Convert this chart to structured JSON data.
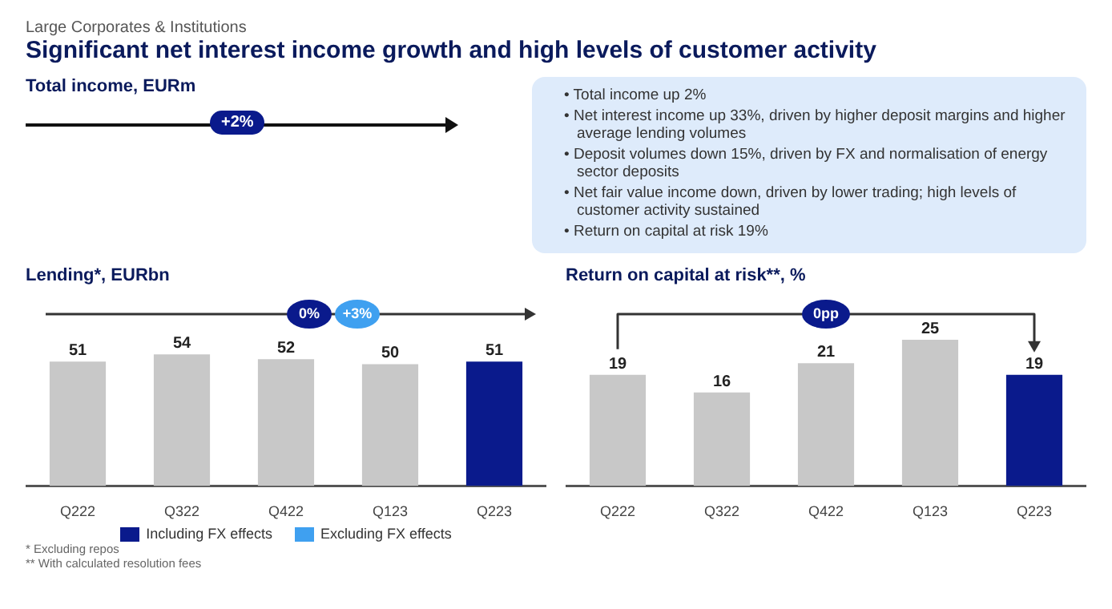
{
  "chart_data": [
    {
      "type": "other",
      "subtitle": "Large Corporates & Institutions",
      "title": "Significant net interest income growth and high levels of customer activity",
      "annotations": [
        "Total income, EURm",
        "+2%",
        "• Total income up 2%",
        "• Net interest income up 33%, driven by higher deposit margins and higher average lending volumes",
        "• Deposit volumes down 15%, driven by FX and normalisation of energy sector deposits",
        "• Net fair value income down, driven by lower trading; high levels of customer activity sustained",
        "• Return on capital at risk 19%"
      ]
    },
    {
      "type": "bar",
      "title": "Lending*, EURbn",
      "categories": [
        "Q222",
        "Q322",
        "Q422",
        "Q123",
        "Q223"
      ],
      "values": [
        51,
        54,
        52,
        50,
        51
      ],
      "colors": [
        "#c8c8c8",
        "#c8c8c8",
        "#c8c8c8",
        "#c8c8c8",
        "#0a1a8c"
      ],
      "data_labels": true,
      "annotations": [
        "0%",
        "+3%",
        "Including FX effects",
        "Excluding FX effects",
        "* Excluding repos",
        "** With calculated resolution fees"
      ]
    },
    {
      "type": "bar",
      "title": "Return on capital at risk**, %",
      "categories": [
        "Q222",
        "Q322",
        "Q422",
        "Q123",
        "Q223"
      ],
      "values": [
        19,
        16,
        21,
        25,
        19
      ],
      "colors": [
        "#c8c8c8",
        "#c8c8c8",
        "#c8c8c8",
        "#c8c8c8",
        "#0a1a8c"
      ],
      "data_labels": true,
      "annotations": [
        "0pp"
      ]
    }
  ]
}
